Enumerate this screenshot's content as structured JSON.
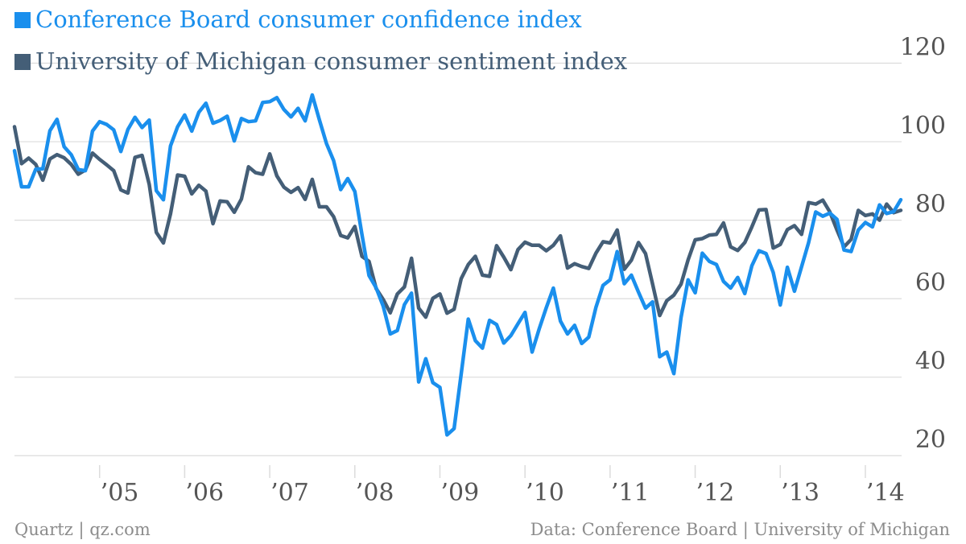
{
  "colors": {
    "series_0": "#1a8fed",
    "series_1": "#445e77",
    "grid": "#dcdcdc",
    "tick_text": "#555555",
    "footer_text": "#8c8c8c"
  },
  "footer": {
    "left": "Quartz | qz.com",
    "right": "Data: Conference Board | University of Michigan"
  },
  "chart_data": {
    "type": "line",
    "title": "",
    "xlabel": "",
    "ylabel": "",
    "xlim": [
      "2004-01",
      "2014-06"
    ],
    "ylim": [
      18,
      124
    ],
    "grid": true,
    "legend_position": "top-left",
    "y_ticks": [
      120,
      100,
      80,
      60,
      40,
      20
    ],
    "x_ticks": [
      {
        "label": "’05",
        "at": "2005-01"
      },
      {
        "label": "’06",
        "at": "2006-01"
      },
      {
        "label": "’07",
        "at": "2007-01"
      },
      {
        "label": "’08",
        "at": "2008-01"
      },
      {
        "label": "’09",
        "at": "2009-01"
      },
      {
        "label": "’10",
        "at": "2010-01"
      },
      {
        "label": "’11",
        "at": "2011-01"
      },
      {
        "label": "’12",
        "at": "2012-01"
      },
      {
        "label": "’13",
        "at": "2013-01"
      },
      {
        "label": "’14",
        "at": "2014-01"
      }
    ],
    "x": [
      "2004-01",
      "2004-02",
      "2004-03",
      "2004-04",
      "2004-05",
      "2004-06",
      "2004-07",
      "2004-08",
      "2004-09",
      "2004-10",
      "2004-11",
      "2004-12",
      "2005-01",
      "2005-02",
      "2005-03",
      "2005-04",
      "2005-05",
      "2005-06",
      "2005-07",
      "2005-08",
      "2005-09",
      "2005-10",
      "2005-11",
      "2005-12",
      "2006-01",
      "2006-02",
      "2006-03",
      "2006-04",
      "2006-05",
      "2006-06",
      "2006-07",
      "2006-08",
      "2006-09",
      "2006-10",
      "2006-11",
      "2006-12",
      "2007-01",
      "2007-02",
      "2007-03",
      "2007-04",
      "2007-05",
      "2007-06",
      "2007-07",
      "2007-08",
      "2007-09",
      "2007-10",
      "2007-11",
      "2007-12",
      "2008-01",
      "2008-02",
      "2008-03",
      "2008-04",
      "2008-05",
      "2008-06",
      "2008-07",
      "2008-08",
      "2008-09",
      "2008-10",
      "2008-11",
      "2008-12",
      "2009-01",
      "2009-02",
      "2009-03",
      "2009-04",
      "2009-05",
      "2009-06",
      "2009-07",
      "2009-08",
      "2009-09",
      "2009-10",
      "2009-11",
      "2009-12",
      "2010-01",
      "2010-02",
      "2010-03",
      "2010-04",
      "2010-05",
      "2010-06",
      "2010-07",
      "2010-08",
      "2010-09",
      "2010-10",
      "2010-11",
      "2010-12",
      "2011-01",
      "2011-02",
      "2011-03",
      "2011-04",
      "2011-05",
      "2011-06",
      "2011-07",
      "2011-08",
      "2011-09",
      "2011-10",
      "2011-11",
      "2011-12",
      "2012-01",
      "2012-02",
      "2012-03",
      "2012-04",
      "2012-05",
      "2012-06",
      "2012-07",
      "2012-08",
      "2012-09",
      "2012-10",
      "2012-11",
      "2012-12",
      "2013-01",
      "2013-02",
      "2013-03",
      "2013-04",
      "2013-05",
      "2013-06",
      "2013-07",
      "2013-08",
      "2013-09",
      "2013-10",
      "2013-11",
      "2013-12",
      "2014-01",
      "2014-02",
      "2014-03",
      "2014-04",
      "2014-05",
      "2014-06"
    ],
    "series": [
      {
        "name": "Conference Board consumer confidence index",
        "values": [
          97.7,
          88.5,
          88.5,
          93.0,
          93.1,
          102.8,
          105.7,
          98.7,
          96.7,
          92.9,
          92.6,
          102.7,
          105.1,
          104.4,
          103.0,
          97.5,
          103.1,
          106.2,
          103.6,
          105.5,
          87.5,
          85.2,
          98.9,
          103.8,
          106.8,
          102.7,
          107.5,
          109.8,
          104.7,
          105.4,
          106.5,
          100.2,
          105.9,
          105.1,
          105.3,
          110.0,
          110.2,
          111.2,
          108.2,
          106.3,
          108.5,
          105.3,
          111.9,
          105.6,
          99.5,
          95.2,
          87.8,
          90.6,
          87.3,
          76.4,
          65.9,
          62.8,
          58.1,
          51.0,
          51.9,
          58.5,
          61.4,
          38.8,
          44.7,
          38.6,
          37.4,
          25.3,
          26.9,
          40.8,
          54.8,
          49.3,
          47.4,
          54.5,
          53.4,
          48.7,
          50.6,
          53.6,
          56.5,
          46.4,
          52.3,
          57.7,
          62.7,
          54.3,
          51.0,
          53.2,
          48.6,
          50.2,
          57.8,
          63.4,
          64.8,
          72.0,
          63.8,
          66.0,
          61.7,
          57.6,
          59.2,
          45.2,
          46.4,
          40.9,
          55.2,
          64.8,
          61.5,
          71.6,
          69.5,
          68.7,
          64.4,
          62.7,
          65.4,
          61.3,
          68.4,
          72.2,
          71.5,
          66.7,
          58.4,
          68.0,
          61.9,
          68.1,
          74.3,
          82.1,
          81.0,
          81.8,
          80.2,
          72.4,
          72.0,
          77.5,
          79.4,
          78.3,
          83.9,
          81.7,
          82.2,
          85.2
        ]
      },
      {
        "name": "University of Michigan consumer sentiment index",
        "values": [
          103.8,
          94.4,
          95.8,
          94.2,
          90.2,
          95.6,
          96.7,
          95.9,
          94.2,
          91.7,
          92.8,
          97.1,
          95.5,
          94.1,
          92.6,
          87.7,
          86.9,
          96.0,
          96.5,
          89.1,
          76.9,
          74.2,
          81.6,
          91.5,
          91.2,
          86.7,
          88.9,
          87.4,
          79.1,
          84.9,
          84.7,
          82.0,
          85.4,
          93.6,
          92.1,
          91.7,
          96.9,
          91.3,
          88.4,
          87.1,
          88.3,
          85.3,
          90.4,
          83.4,
          83.4,
          80.9,
          76.1,
          75.5,
          78.4,
          70.8,
          69.5,
          62.6,
          59.8,
          56.4,
          61.2,
          63.0,
          70.3,
          57.6,
          55.3,
          60.1,
          61.2,
          56.3,
          57.3,
          65.1,
          68.7,
          70.8,
          66.0,
          65.7,
          73.5,
          70.6,
          67.4,
          72.5,
          74.4,
          73.6,
          73.6,
          72.2,
          73.6,
          76.0,
          67.8,
          68.9,
          68.2,
          67.7,
          71.6,
          74.5,
          74.2,
          77.5,
          67.5,
          69.8,
          74.3,
          71.5,
          63.7,
          55.7,
          59.5,
          60.9,
          63.7,
          69.9,
          75.0,
          75.3,
          76.2,
          76.4,
          79.3,
          73.2,
          72.3,
          74.3,
          78.3,
          82.6,
          82.7,
          72.9,
          73.8,
          77.6,
          78.6,
          76.4,
          84.5,
          84.1,
          85.1,
          82.1,
          77.5,
          73.2,
          75.1,
          82.5,
          81.2,
          81.6,
          80.0,
          84.1,
          81.9,
          82.5
        ]
      }
    ]
  }
}
